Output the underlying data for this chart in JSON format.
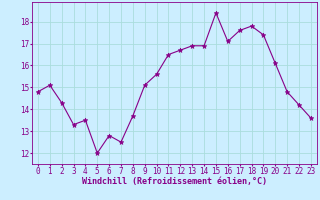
{
  "x": [
    0,
    1,
    2,
    3,
    4,
    5,
    6,
    7,
    8,
    9,
    10,
    11,
    12,
    13,
    14,
    15,
    16,
    17,
    18,
    19,
    20,
    21,
    22,
    23
  ],
  "y": [
    14.8,
    15.1,
    14.3,
    13.3,
    13.5,
    12.0,
    12.8,
    12.5,
    13.7,
    15.1,
    15.6,
    16.5,
    16.7,
    16.9,
    16.9,
    18.4,
    17.1,
    17.6,
    17.8,
    17.4,
    16.1,
    14.8,
    14.2,
    13.6
  ],
  "line_color": "#880088",
  "marker": "*",
  "marker_size": 3.5,
  "bg_color": "#cceeff",
  "grid_color": "#aadddd",
  "xlabel": "Windchill (Refroidissement éolien,°C)",
  "xlabel_fontsize": 6.0,
  "tick_fontsize": 5.5,
  "ylim": [
    11.5,
    18.9
  ],
  "yticks": [
    12,
    13,
    14,
    15,
    16,
    17,
    18
  ],
  "xticks": [
    0,
    1,
    2,
    3,
    4,
    5,
    6,
    7,
    8,
    9,
    10,
    11,
    12,
    13,
    14,
    15,
    16,
    17,
    18,
    19,
    20,
    21,
    22,
    23
  ]
}
